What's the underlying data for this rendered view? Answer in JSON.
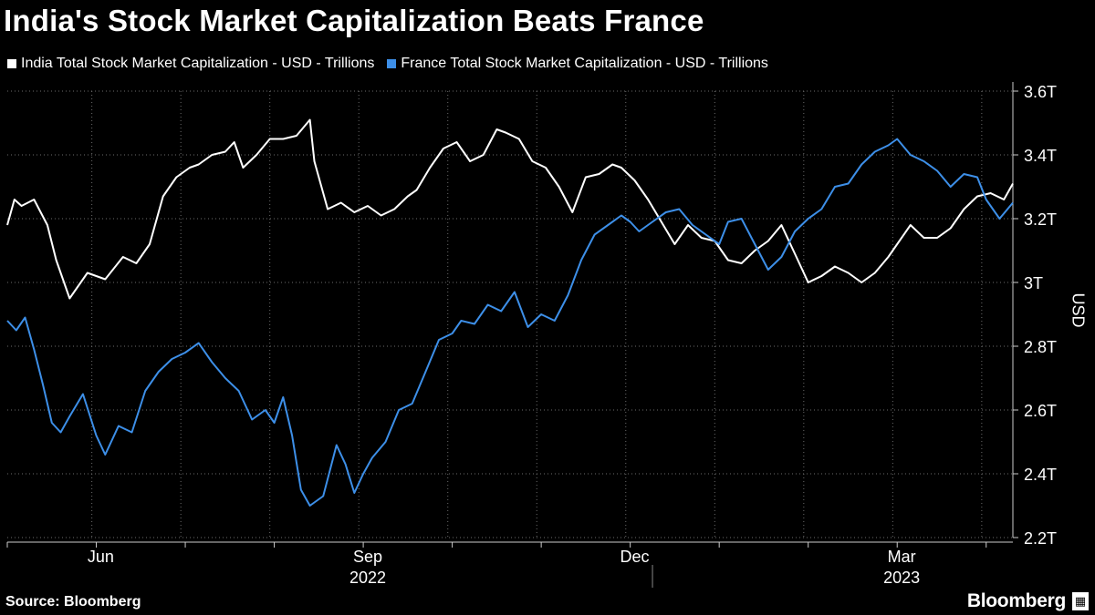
{
  "title": "India's Stock Market Capitalization Beats France",
  "source": "Source: Bloomberg",
  "brand": "Bloomberg",
  "colors": {
    "background": "#000000",
    "india": "#ffffff",
    "france": "#3d8fe8",
    "grid": "#666666"
  },
  "chart_data": {
    "type": "line",
    "title": "India's Stock Market Capitalization Beats France",
    "xlabel": "",
    "ylabel": "USD",
    "ylim": [
      2.2,
      3.6
    ],
    "yticks": [
      2.2,
      2.4,
      2.6,
      2.8,
      3.0,
      3.2,
      3.4,
      3.6
    ],
    "ytick_labels": [
      "2.2T",
      "2.4T",
      "2.6T",
      "2.8T",
      "3T",
      "3.2T",
      "3.4T",
      "3.6T"
    ],
    "x_range": [
      "2022-05-23",
      "2023-04-24"
    ],
    "month_labels": [
      {
        "label": "Jun",
        "month": 1
      },
      {
        "label": "Sep",
        "month": 4
      },
      {
        "label": "Dec",
        "month": 7
      },
      {
        "label": "Mar",
        "month": 10
      }
    ],
    "year_labels": [
      {
        "label": "2022",
        "month": 4
      },
      {
        "label": "2023",
        "month": 10
      }
    ],
    "legend_position": "top-left",
    "series": [
      {
        "name": "India Total Stock Market Capitalization - USD - Trillions",
        "color": "#ffffff",
        "x": [
          0,
          0.08,
          0.16,
          0.3,
          0.45,
          0.55,
          0.7,
          0.9,
          1.1,
          1.3,
          1.45,
          1.6,
          1.75,
          1.9,
          2.05,
          2.15,
          2.3,
          2.45,
          2.55,
          2.65,
          2.8,
          2.95,
          3.1,
          3.25,
          3.4,
          3.45,
          3.6,
          3.75,
          3.9,
          4.05,
          4.2,
          4.35,
          4.5,
          4.6,
          4.75,
          4.9,
          5.05,
          5.2,
          5.35,
          5.5,
          5.6,
          5.75,
          5.9,
          6.05,
          6.2,
          6.35,
          6.5,
          6.65,
          6.8,
          6.9,
          7.05,
          7.2,
          7.35,
          7.5,
          7.65,
          7.8,
          7.95,
          8.1,
          8.25,
          8.4,
          8.55,
          8.7,
          8.85,
          9.0,
          9.15,
          9.3,
          9.45,
          9.6,
          9.75,
          9.9,
          10.0,
          10.15,
          10.3,
          10.45,
          10.6,
          10.75,
          10.9,
          11.05,
          11.2,
          11.3
        ],
        "values": [
          3.18,
          3.26,
          3.24,
          3.26,
          3.18,
          3.07,
          2.95,
          3.03,
          3.01,
          3.08,
          3.06,
          3.12,
          3.27,
          3.33,
          3.36,
          3.37,
          3.4,
          3.41,
          3.44,
          3.36,
          3.4,
          3.45,
          3.45,
          3.46,
          3.51,
          3.38,
          3.23,
          3.25,
          3.22,
          3.24,
          3.21,
          3.23,
          3.27,
          3.29,
          3.36,
          3.42,
          3.44,
          3.38,
          3.4,
          3.48,
          3.47,
          3.45,
          3.38,
          3.36,
          3.3,
          3.22,
          3.33,
          3.34,
          3.37,
          3.36,
          3.32,
          3.26,
          3.19,
          3.12,
          3.18,
          3.14,
          3.13,
          3.07,
          3.06,
          3.1,
          3.13,
          3.18,
          3.09,
          3.0,
          3.02,
          3.05,
          3.03,
          3.0,
          3.03,
          3.08,
          3.12,
          3.18,
          3.14,
          3.14,
          3.17,
          3.23,
          3.27,
          3.28,
          3.26,
          3.31
        ]
      },
      {
        "name": "France Total Stock Market Capitalization - USD - Trillions",
        "color": "#3d8fe8",
        "x": [
          0,
          0.1,
          0.2,
          0.3,
          0.4,
          0.5,
          0.6,
          0.7,
          0.85,
          1.0,
          1.1,
          1.25,
          1.4,
          1.55,
          1.7,
          1.85,
          2.0,
          2.15,
          2.3,
          2.45,
          2.6,
          2.75,
          2.9,
          3.0,
          3.1,
          3.2,
          3.3,
          3.4,
          3.55,
          3.7,
          3.8,
          3.9,
          4.0,
          4.1,
          4.25,
          4.4,
          4.55,
          4.7,
          4.85,
          5.0,
          5.1,
          5.25,
          5.4,
          5.55,
          5.7,
          5.85,
          6.0,
          6.15,
          6.3,
          6.45,
          6.6,
          6.75,
          6.9,
          7.0,
          7.1,
          7.25,
          7.4,
          7.55,
          7.7,
          7.85,
          8.0,
          8.1,
          8.25,
          8.4,
          8.55,
          8.7,
          8.85,
          9.0,
          9.15,
          9.3,
          9.45,
          9.6,
          9.75,
          9.9,
          10.0,
          10.15,
          10.3,
          10.45,
          10.6,
          10.75,
          10.9,
          11.0,
          11.15,
          11.3
        ],
        "values": [
          2.88,
          2.85,
          2.89,
          2.79,
          2.68,
          2.56,
          2.53,
          2.58,
          2.65,
          2.52,
          2.46,
          2.55,
          2.53,
          2.66,
          2.72,
          2.76,
          2.78,
          2.81,
          2.75,
          2.7,
          2.66,
          2.57,
          2.6,
          2.56,
          2.64,
          2.52,
          2.35,
          2.3,
          2.33,
          2.49,
          2.43,
          2.34,
          2.4,
          2.45,
          2.5,
          2.6,
          2.62,
          2.72,
          2.82,
          2.84,
          2.88,
          2.87,
          2.93,
          2.91,
          2.97,
          2.86,
          2.9,
          2.88,
          2.96,
          3.07,
          3.15,
          3.18,
          3.21,
          3.19,
          3.16,
          3.19,
          3.22,
          3.23,
          3.18,
          3.15,
          3.12,
          3.19,
          3.2,
          3.12,
          3.04,
          3.08,
          3.16,
          3.2,
          3.23,
          3.3,
          3.31,
          3.37,
          3.41,
          3.43,
          3.45,
          3.4,
          3.38,
          3.35,
          3.3,
          3.34,
          3.33,
          3.26,
          3.2,
          3.25
        ]
      }
    ]
  }
}
